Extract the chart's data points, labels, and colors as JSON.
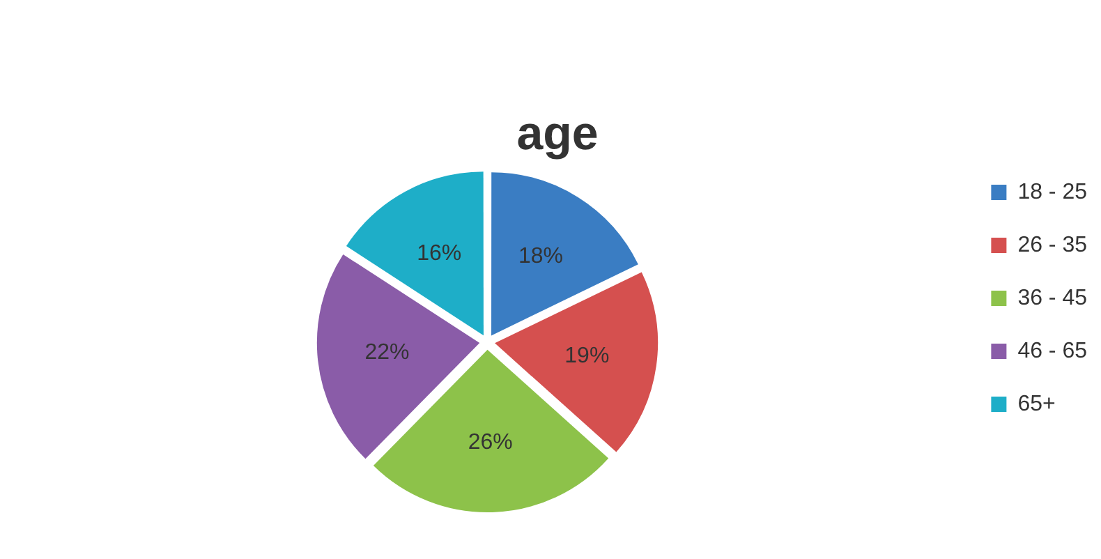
{
  "chart_data": {
    "type": "pie",
    "title": "age",
    "categories": [
      "18 - 25",
      "26 - 35",
      "36 - 45",
      "46 - 65",
      "65+"
    ],
    "values": [
      18,
      19,
      26,
      22,
      16
    ],
    "colors": [
      "#3a7dc3",
      "#d5504f",
      "#8dc24a",
      "#8a5ca8",
      "#1eaec8"
    ],
    "value_labels": [
      "18%",
      "19%",
      "26%",
      "22%",
      "16%"
    ],
    "legend": "right"
  }
}
